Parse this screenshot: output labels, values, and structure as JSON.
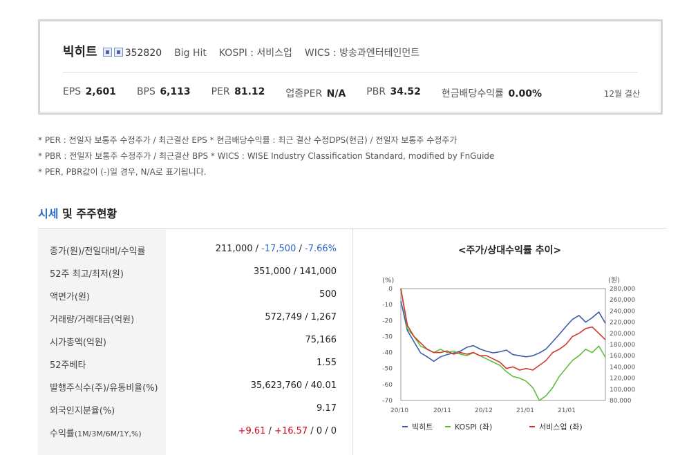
{
  "company": {
    "name": "빅히트",
    "icons": [
      "building-icon",
      "badge-icon"
    ],
    "code": "352820",
    "english_name": "Big Hit",
    "market": "KOSPI : 서비스업",
    "wics": "WICS : 방송과엔터테인먼트"
  },
  "metrics": [
    {
      "label": "EPS",
      "value": "2,601"
    },
    {
      "label": "BPS",
      "value": "6,113"
    },
    {
      "label": "PER",
      "value": "81.12"
    },
    {
      "label": "업종PER",
      "value": "N/A"
    },
    {
      "label": "PBR",
      "value": "34.52"
    },
    {
      "label": "현금배당수익률",
      "value": "0.00%"
    }
  ],
  "fiscal_note": "12월 결산",
  "notes": [
    "* PER : 전일자 보통주 수정주가 / 최근결산 EPS * 현금배당수익률 : 최근 결산 수정DPS(현금) / 전일자 보통주 수정주가",
    "* PBR : 전일자 보통주 수정주가 / 최근결산 BPS * WICS : WISE Industry Classification Standard, modified by FnGuide",
    "* PER, PBR값이 (-)일 경우, N/A로 표기됩니다."
  ],
  "section": {
    "title_highlight": "시세",
    "title_rest": " 및 주주현황"
  },
  "market_table": [
    {
      "label": "종가(원)/전일대비/수익률",
      "v1": "211,000",
      "s1": " / ",
      "v2": "-17,500",
      "s2": " / ",
      "v3": "-7.66%"
    },
    {
      "label": "52주 최고/최저(원)",
      "v1": "351,000 / 141,000"
    },
    {
      "label": "액면가(원)",
      "v1": "500"
    },
    {
      "label": "거래량/거래대금(억원)",
      "v1": "572,749 / 1,267"
    },
    {
      "label": "시가총액(억원)",
      "v1": "75,166"
    },
    {
      "label": "52주베타",
      "v1": "1.55"
    },
    {
      "label": "발행주식수(주)/유동비율(%)",
      "v1": "35,623,760 / 40.01"
    },
    {
      "label": "외국인지분율(%)",
      "v1": "9.17"
    },
    {
      "label": "수익률",
      "label_small": "(1M/3M/6M/1Y,%)",
      "v1": "+9.61",
      "s1": " / ",
      "v2": "+16.57",
      "s2": " / ",
      "v3": "0 / 0"
    }
  ],
  "chart_data": {
    "type": "line",
    "title": "<주가/상대수익률 추이>",
    "left_axis_unit": "(%)",
    "right_axis_unit": "(원)",
    "left_ticks": [
      "0",
      "-10",
      "-20",
      "-30",
      "-40",
      "-50",
      "-60",
      "-70"
    ],
    "right_ticks": [
      "280,000",
      "260,000",
      "240,000",
      "220,000",
      "200,000",
      "180,000",
      "160,000",
      "140,000",
      "120,000",
      "100,000",
      "80,000"
    ],
    "x_ticks": [
      "20/10",
      "20/11",
      "20/12",
      "21/01",
      "21/01"
    ],
    "ylim_left": [
      -70,
      0
    ],
    "ylim_right": [
      80000,
      280000
    ],
    "x": [
      0,
      1,
      2,
      3,
      4,
      5,
      6,
      7,
      8,
      9,
      10,
      11,
      12,
      13,
      14,
      15,
      16,
      17,
      18,
      19,
      20,
      21,
      22,
      23,
      24,
      25,
      26,
      27,
      28,
      29,
      30,
      31
    ],
    "series": [
      {
        "name": "빅히트",
        "axis": "right",
        "color": "#3a5ca8",
        "values": [
          258000,
          205000,
          185000,
          165000,
          158000,
          150000,
          158000,
          162000,
          165000,
          168000,
          175000,
          178000,
          172000,
          168000,
          165000,
          167000,
          170000,
          162000,
          160000,
          158000,
          160000,
          165000,
          172000,
          185000,
          198000,
          212000,
          225000,
          232000,
          220000,
          228000,
          238000,
          218000
        ]
      },
      {
        "name": "KOSPI (좌)",
        "axis": "left",
        "color": "#5cbf3c",
        "values": [
          0,
          -25,
          -30,
          -36,
          -38,
          -40,
          -38,
          -40,
          -39,
          -41,
          -42,
          -40,
          -42,
          -44,
          -46,
          -48,
          -52,
          -55,
          -56,
          -58,
          -62,
          -70,
          -67,
          -62,
          -55,
          -50,
          -45,
          -42,
          -38,
          -40,
          -36,
          -43
        ]
      },
      {
        "name": "서비스업 (좌)",
        "axis": "left",
        "color": "#d0362b",
        "values": [
          0,
          -23,
          -30,
          -34,
          -38,
          -40,
          -40,
          -39,
          -41,
          -40,
          -41,
          -40,
          -42,
          -42,
          -44,
          -46,
          -50,
          -49,
          -51,
          -50,
          -51,
          -48,
          -45,
          -40,
          -38,
          -35,
          -30,
          -28,
          -25,
          -24,
          -28,
          -32
        ]
      }
    ]
  }
}
